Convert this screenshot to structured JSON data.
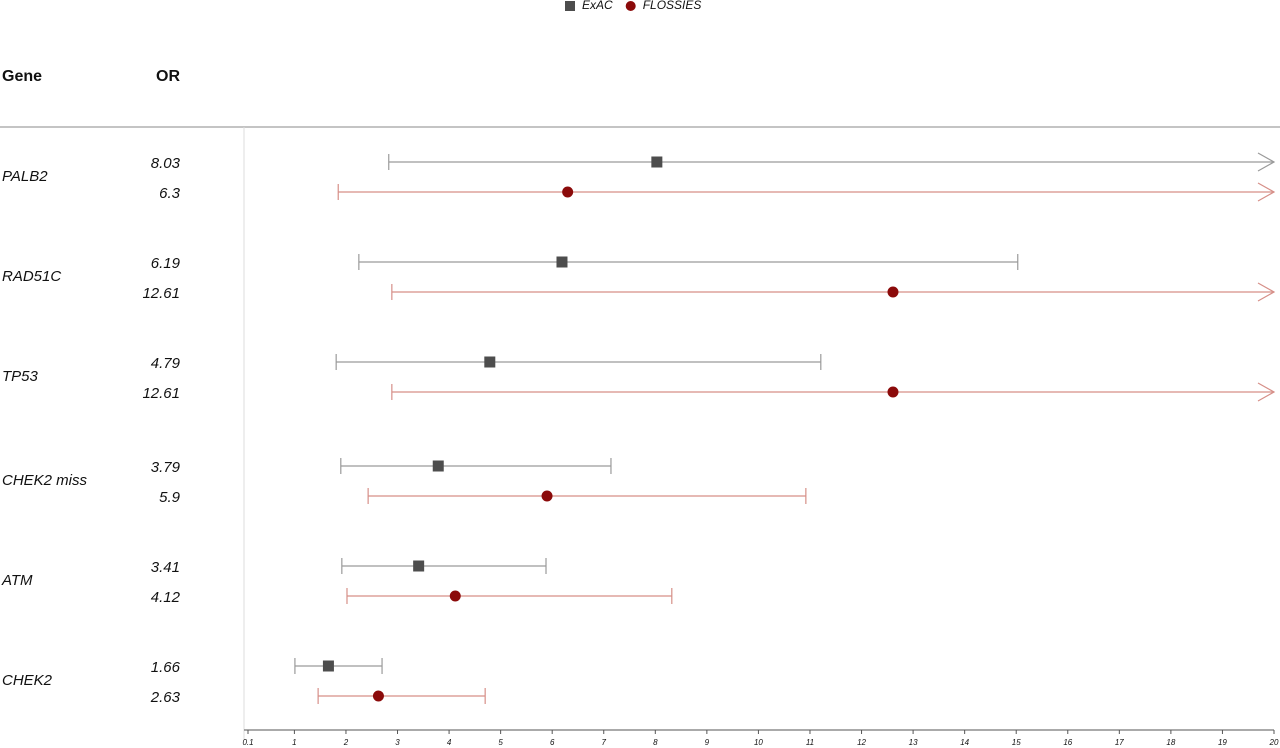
{
  "chart_data": {
    "type": "forest",
    "gene_header": "Gene",
    "or_header": "OR",
    "categories": [
      "PALB2",
      "RAD51C",
      "TP53",
      "CHEK2 miss",
      "ATM",
      "CHEK2"
    ],
    "series": [
      {
        "name": "ExAC",
        "color": "#4d4d4d",
        "ci_color": "#9a9a9a",
        "marker": "square",
        "values": [
          8.03,
          6.19,
          4.79,
          3.79,
          3.41,
          1.66
        ],
        "lower": [
          2.83,
          2.25,
          1.81,
          1.9,
          1.92,
          1.01
        ],
        "upper": [
          null,
          15.03,
          11.21,
          7.14,
          5.88,
          2.7
        ]
      },
      {
        "name": "FLOSSIES",
        "color": "#8b0a0a",
        "ci_color": "#d68f88",
        "marker": "circle",
        "values": [
          6.3,
          12.61,
          12.61,
          5.9,
          4.12,
          2.63
        ],
        "lower": [
          1.85,
          2.89,
          2.89,
          2.43,
          2.02,
          1.46
        ],
        "upper": [
          null,
          null,
          null,
          10.92,
          8.32,
          4.7
        ]
      }
    ],
    "xlim": [
      0.1,
      20
    ],
    "xticks": [
      0.1,
      1,
      2,
      3,
      4,
      5,
      6,
      7,
      8,
      9,
      10,
      11,
      12,
      13,
      14,
      15,
      16,
      17,
      18,
      19,
      20
    ]
  }
}
